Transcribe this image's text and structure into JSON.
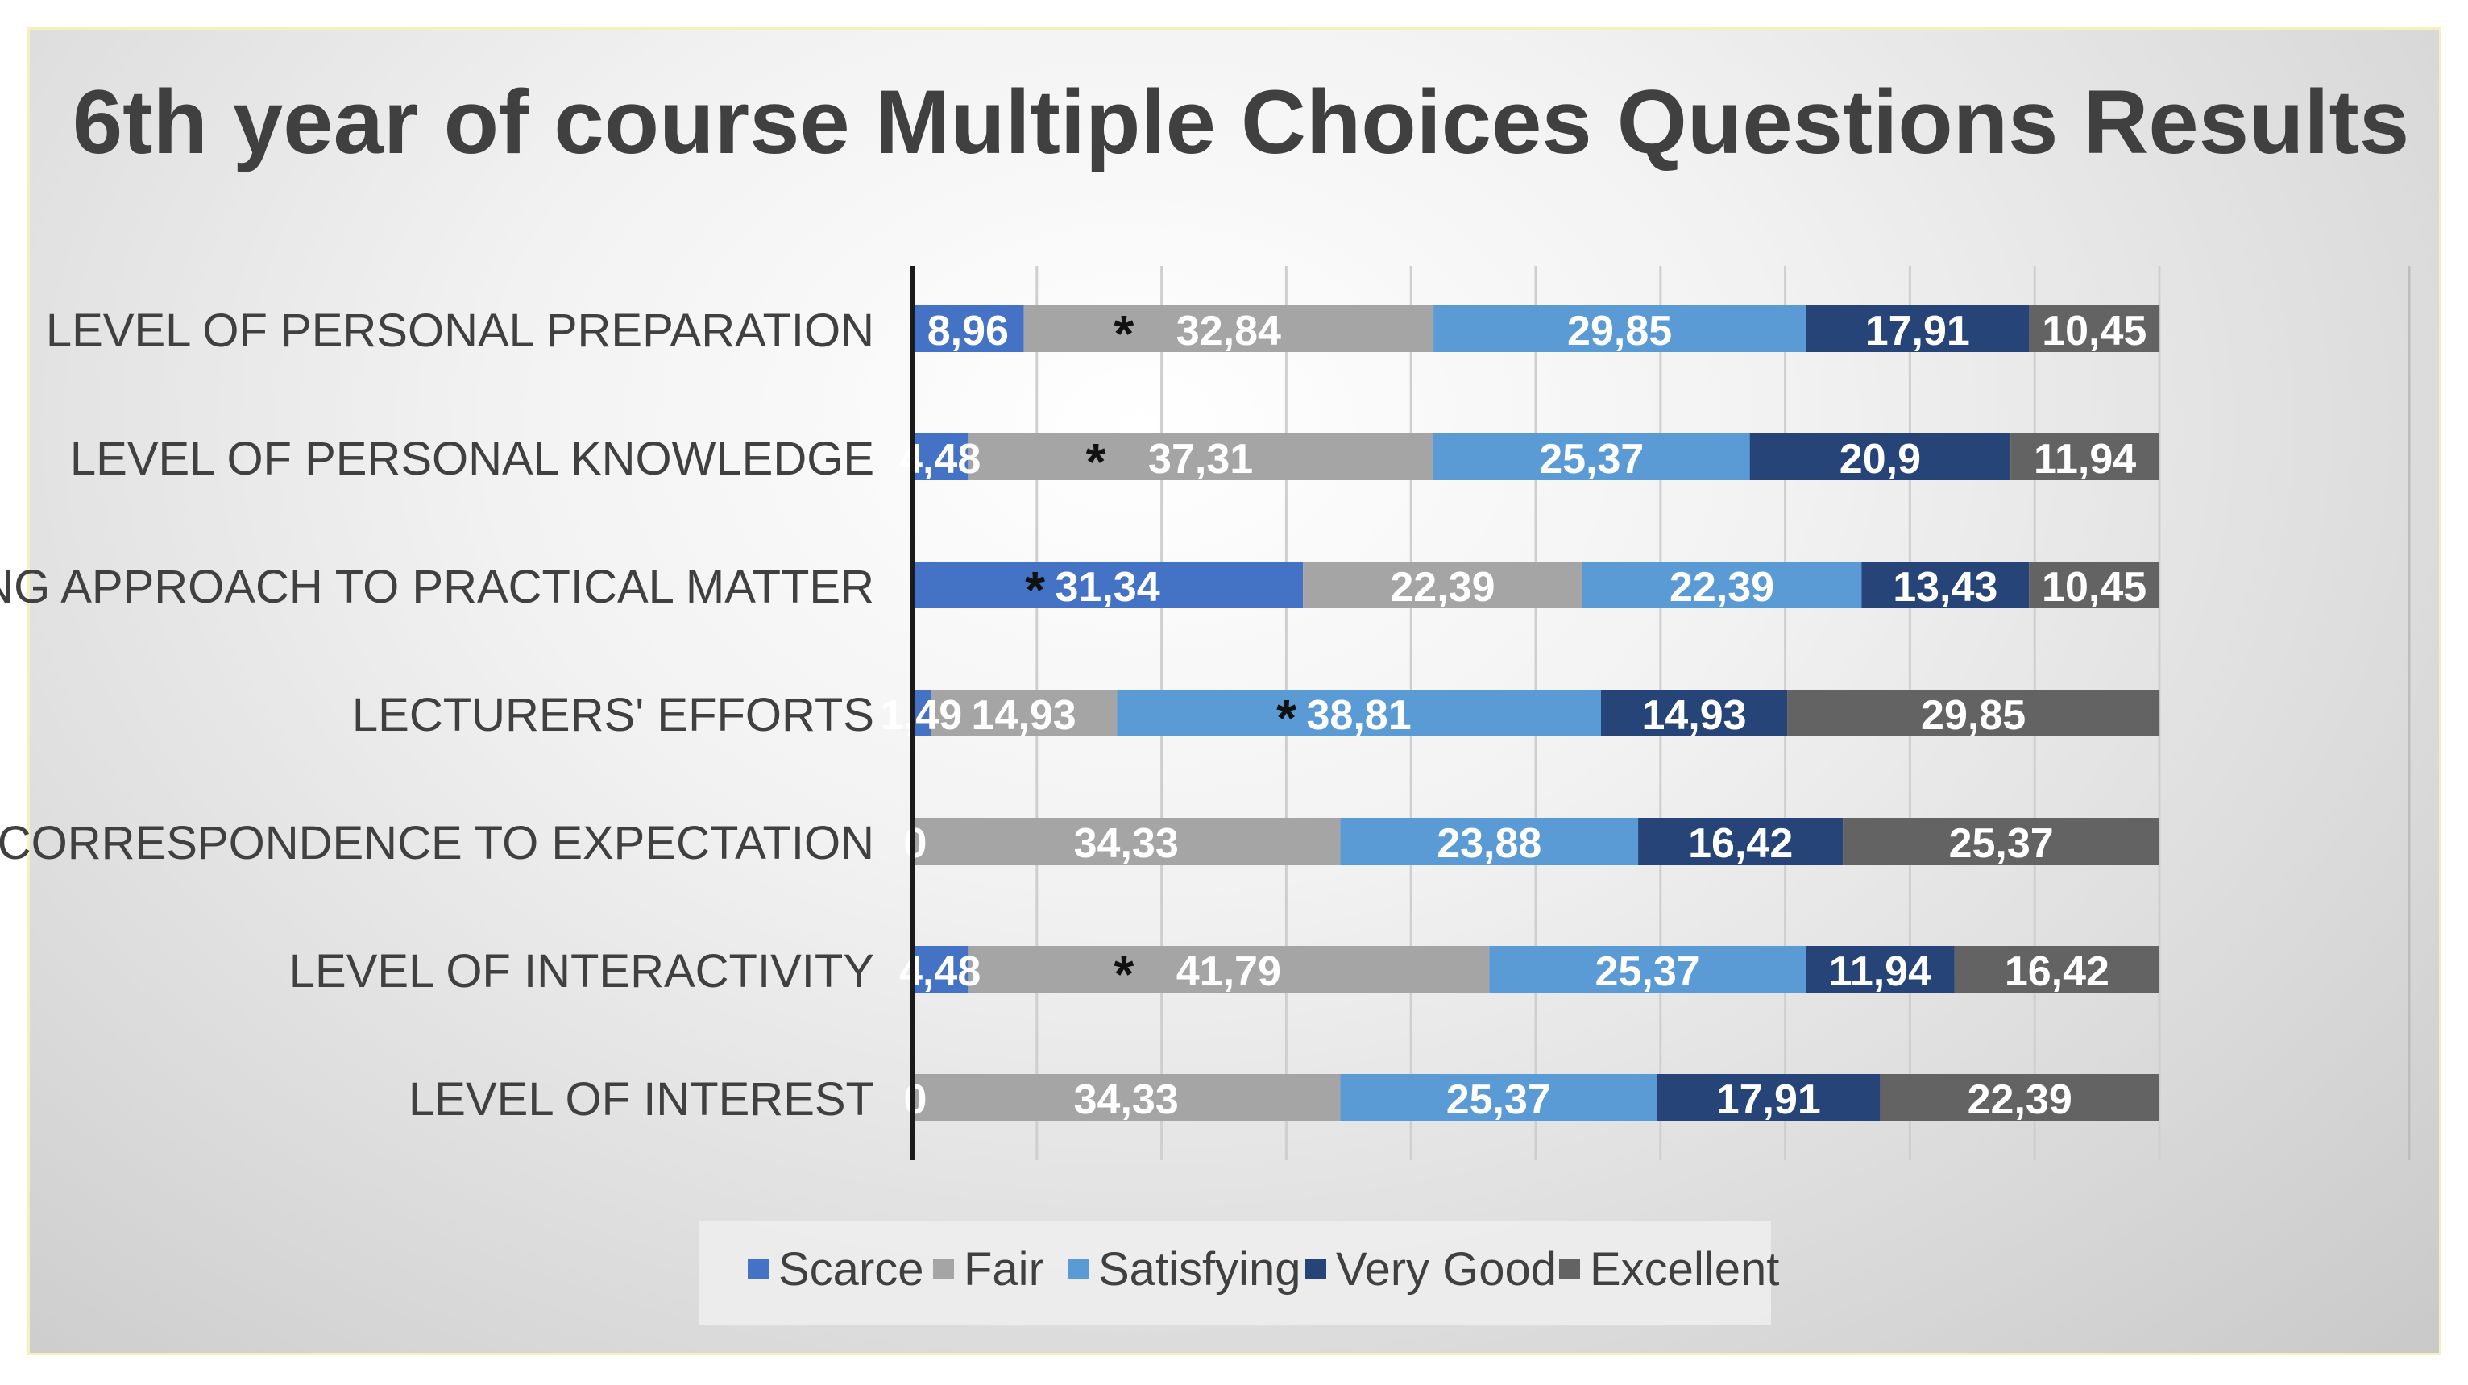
{
  "chart_data": {
    "type": "bar",
    "orientation": "horizontal",
    "stacked": true,
    "title": "6th year of course Multiple Choices Questions Results",
    "categories": [
      "LEVEL OF PERSONAL PREPARATION",
      "LEVEL OF PERSONAL KNOWLEDGE",
      "E-TEACHING APPROACH TO PRACTICAL MATTER",
      "LECTURERS' EFFORTS",
      "CORRESPONDENCE TO EXPECTATION",
      "LEVEL OF INTERACTIVITY",
      "LEVEL OF INTEREST"
    ],
    "series": [
      {
        "name": "Scarce",
        "color": "#4472c4",
        "values": [
          8.96,
          4.48,
          31.34,
          1.49,
          0,
          4.48,
          0
        ],
        "labels": [
          "8,96",
          "4,48",
          "31,34",
          "1,49",
          "0",
          "4,48",
          "0"
        ]
      },
      {
        "name": "Fair",
        "color": "#a5a5a5",
        "values": [
          32.84,
          37.31,
          22.39,
          14.93,
          34.33,
          41.79,
          34.33
        ],
        "labels": [
          "32,84",
          "37,31",
          "22,39",
          "14,93",
          "34,33",
          "41,79",
          "34,33"
        ]
      },
      {
        "name": "Satisfying",
        "color": "#5b9bd5",
        "values": [
          29.85,
          25.37,
          22.39,
          38.81,
          23.88,
          25.37,
          25.37
        ],
        "labels": [
          "29,85",
          "25,37",
          "22,39",
          "38,81",
          "23,88",
          "25,37",
          "25,37"
        ]
      },
      {
        "name": "Very Good",
        "color": "#264478",
        "values": [
          17.91,
          20.9,
          13.43,
          14.93,
          16.42,
          11.94,
          17.91
        ],
        "labels": [
          "17,91",
          "20,9",
          "13,43",
          "14,93",
          "16,42",
          "11,94",
          "17,91"
        ]
      },
      {
        "name": "Excellent",
        "color": "#636363",
        "values": [
          10.45,
          11.94,
          10.45,
          29.85,
          25.37,
          16.42,
          22.39
        ],
        "labels": [
          "10,45",
          "11,94",
          "10,45",
          "29,85",
          "25,37",
          "16,42",
          "22,39"
        ]
      }
    ],
    "stars": [
      {
        "category": "LEVEL OF PERSONAL PREPARATION",
        "series": "Fair",
        "symbol": "*"
      },
      {
        "category": "LEVEL OF PERSONAL KNOWLEDGE",
        "series": "Fair",
        "symbol": "*"
      },
      {
        "category": "E-TEACHING APPROACH TO PRACTICAL MATTER",
        "series": "Scarce",
        "symbol": "*"
      },
      {
        "category": "LECTURERS' EFFORTS",
        "series": "Satisfying",
        "symbol": "*"
      },
      {
        "category": "LEVEL OF INTERACTIVITY",
        "series": "Fair",
        "symbol": "*"
      }
    ],
    "xlim": [
      0,
      100
    ],
    "grid": true,
    "legend": "bottom"
  }
}
